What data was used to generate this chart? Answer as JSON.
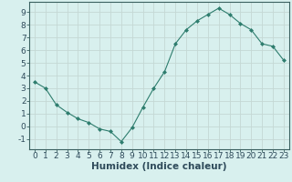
{
  "x": [
    0,
    1,
    2,
    3,
    4,
    5,
    6,
    7,
    8,
    9,
    10,
    11,
    12,
    13,
    14,
    15,
    16,
    17,
    18,
    19,
    20,
    21,
    22,
    23
  ],
  "y": [
    3.5,
    3.0,
    1.7,
    1.1,
    0.6,
    0.3,
    -0.2,
    -0.4,
    -1.2,
    -0.1,
    1.5,
    3.0,
    4.3,
    6.5,
    7.6,
    8.3,
    8.8,
    9.3,
    8.8,
    8.1,
    7.6,
    6.5,
    6.3,
    5.2
  ],
  "line_color": "#2e7d6e",
  "marker": "D",
  "marker_size": 2.0,
  "bg_color": "#d8f0ee",
  "grid_color": "#c4d8d4",
  "xlabel": "Humidex (Indice chaleur)",
  "ylim": [
    -1.8,
    9.8
  ],
  "xlim": [
    -0.5,
    23.5
  ],
  "yticks": [
    -1,
    0,
    1,
    2,
    3,
    4,
    5,
    6,
    7,
    8,
    9
  ],
  "xticks": [
    0,
    1,
    2,
    3,
    4,
    5,
    6,
    7,
    8,
    9,
    10,
    11,
    12,
    13,
    14,
    15,
    16,
    17,
    18,
    19,
    20,
    21,
    22,
    23
  ],
  "axis_color": "#3a6060",
  "tick_color": "#2e4a5a",
  "font_size": 6.5,
  "xlabel_fontsize": 7.5,
  "lw": 0.8
}
